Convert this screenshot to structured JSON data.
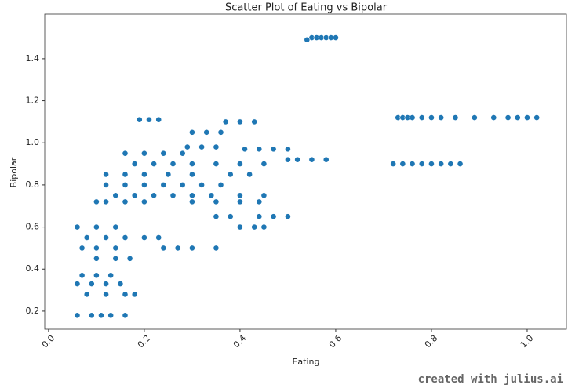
{
  "chart_data": {
    "type": "scatter",
    "title": "Scatter Plot of Eating vs Bipolar",
    "x_label": "Eating",
    "y_label": "Bipolar",
    "watermark": "created with julius.ai",
    "color": "#1f77b4",
    "xlim": [
      -0.008,
      1.082
    ],
    "ylim": [
      0.114,
      1.612
    ],
    "xticks": [
      {
        "value": 0,
        "label": "0.0"
      },
      0.2,
      0.4,
      0.6,
      0.8,
      {
        "value": 1,
        "label": "1.0"
      }
    ],
    "yticks": [
      0.2,
      0.4,
      0.6,
      0.8,
      {
        "value": 1,
        "label": "1.0"
      },
      1.2,
      1.4
    ],
    "x": [
      0.55,
      0.56,
      0.57,
      0.58,
      0.59,
      0.6,
      0.54,
      0.73,
      0.74,
      0.75,
      0.76,
      0.78,
      0.8,
      0.82,
      0.85,
      0.89,
      0.93,
      0.96,
      0.98,
      1.0,
      1.02,
      0.72,
      0.74,
      0.76,
      0.78,
      0.8,
      0.82,
      0.84,
      0.86,
      0.5,
      0.52,
      0.55,
      0.58,
      0.41,
      0.44,
      0.47,
      0.5,
      0.37,
      0.4,
      0.43,
      0.3,
      0.33,
      0.36,
      0.19,
      0.21,
      0.23,
      0.29,
      0.32,
      0.35,
      0.16,
      0.2,
      0.24,
      0.28,
      0.18,
      0.22,
      0.26,
      0.3,
      0.35,
      0.4,
      0.45,
      0.12,
      0.16,
      0.2,
      0.25,
      0.3,
      0.38,
      0.42,
      0.12,
      0.16,
      0.2,
      0.24,
      0.28,
      0.32,
      0.36,
      0.14,
      0.18,
      0.22,
      0.26,
      0.3,
      0.34,
      0.4,
      0.45,
      0.1,
      0.12,
      0.16,
      0.2,
      0.3,
      0.35,
      0.4,
      0.44,
      0.35,
      0.38,
      0.44,
      0.47,
      0.5,
      0.06,
      0.1,
      0.14,
      0.4,
      0.43,
      0.45,
      0.08,
      0.12,
      0.16,
      0.2,
      0.23,
      0.07,
      0.1,
      0.14,
      0.24,
      0.27,
      0.3,
      0.35,
      0.1,
      0.14,
      0.17,
      0.07,
      0.1,
      0.13,
      0.06,
      0.09,
      0.12,
      0.15,
      0.08,
      0.12,
      0.16,
      0.18,
      0.06,
      0.09,
      0.11,
      0.13,
      0.16
    ],
    "y": [
      1.5,
      1.5,
      1.5,
      1.5,
      1.5,
      1.5,
      1.49,
      1.12,
      1.12,
      1.12,
      1.12,
      1.12,
      1.12,
      1.12,
      1.12,
      1.12,
      1.12,
      1.12,
      1.12,
      1.12,
      1.12,
      0.9,
      0.9,
      0.9,
      0.9,
      0.9,
      0.9,
      0.9,
      0.9,
      0.92,
      0.92,
      0.92,
      0.92,
      0.97,
      0.97,
      0.97,
      0.97,
      1.1,
      1.1,
      1.1,
      1.05,
      1.05,
      1.05,
      1.11,
      1.11,
      1.11,
      0.98,
      0.98,
      0.98,
      0.95,
      0.95,
      0.95,
      0.95,
      0.9,
      0.9,
      0.9,
      0.9,
      0.9,
      0.9,
      0.9,
      0.85,
      0.85,
      0.85,
      0.85,
      0.85,
      0.85,
      0.85,
      0.8,
      0.8,
      0.8,
      0.8,
      0.8,
      0.8,
      0.8,
      0.75,
      0.75,
      0.75,
      0.75,
      0.75,
      0.75,
      0.75,
      0.75,
      0.72,
      0.72,
      0.72,
      0.72,
      0.72,
      0.72,
      0.72,
      0.72,
      0.65,
      0.65,
      0.65,
      0.65,
      0.65,
      0.6,
      0.6,
      0.6,
      0.6,
      0.6,
      0.6,
      0.55,
      0.55,
      0.55,
      0.55,
      0.55,
      0.5,
      0.5,
      0.5,
      0.5,
      0.5,
      0.5,
      0.5,
      0.45,
      0.45,
      0.45,
      0.37,
      0.37,
      0.37,
      0.33,
      0.33,
      0.33,
      0.33,
      0.28,
      0.28,
      0.28,
      0.28,
      0.18,
      0.18,
      0.18,
      0.18,
      0.18
    ]
  }
}
